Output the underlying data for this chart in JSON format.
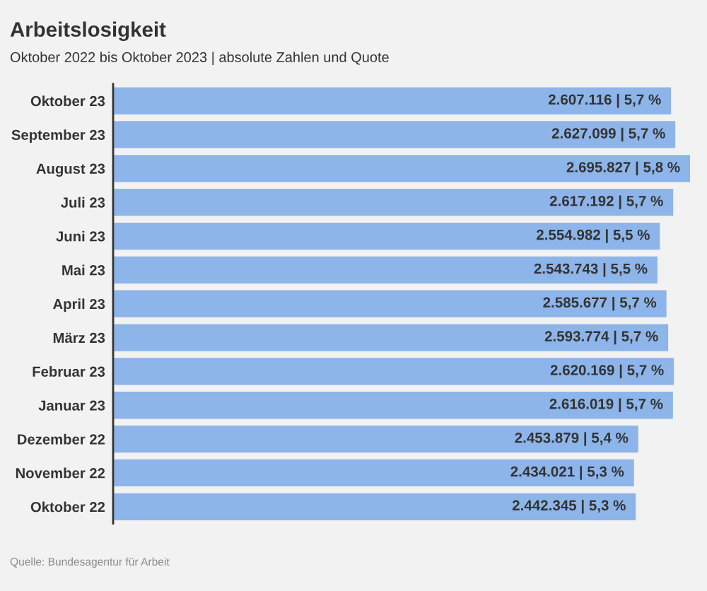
{
  "chart_data": {
    "type": "bar",
    "orientation": "horizontal",
    "title": "Arbeitslosigkeit",
    "subtitle": "Oktober 2022 bis Oktober 2023 | absolute Zahlen und Quote",
    "categories": [
      "Oktober 23",
      "September 23",
      "August 23",
      "Juli 23",
      "Juni 23",
      "Mai 23",
      "April 23",
      "März 23",
      "Februar 23",
      "Januar 23",
      "Dezember 22",
      "November 22",
      "Oktober 22"
    ],
    "values": [
      2607116,
      2627099,
      2695827,
      2617192,
      2554982,
      2543743,
      2585677,
      2593774,
      2620169,
      2616019,
      2453879,
      2434021,
      2442345
    ],
    "value_labels": [
      "2.607.116 | 5,7 %",
      "2.627.099 | 5,7 %",
      "2.695.827 | 5,8 %",
      "2.617.192 | 5,7 %",
      "2.554.982 | 5,5 %",
      "2.543.743 | 5,5 %",
      "2.585.677 | 5,7 %",
      "2.593.774 | 5,7 %",
      "2.620.169 | 5,7 %",
      "2.616.019 | 5,7 %",
      "2.453.879 | 5,4 %",
      "2.434.021 | 5,3 %",
      "2.442.345 | 5,3 %"
    ],
    "color": "#8db5e9",
    "tick_labels": "y",
    "annotations": [
      "Quelle: Bundesagentur für Arbeit"
    ]
  }
}
